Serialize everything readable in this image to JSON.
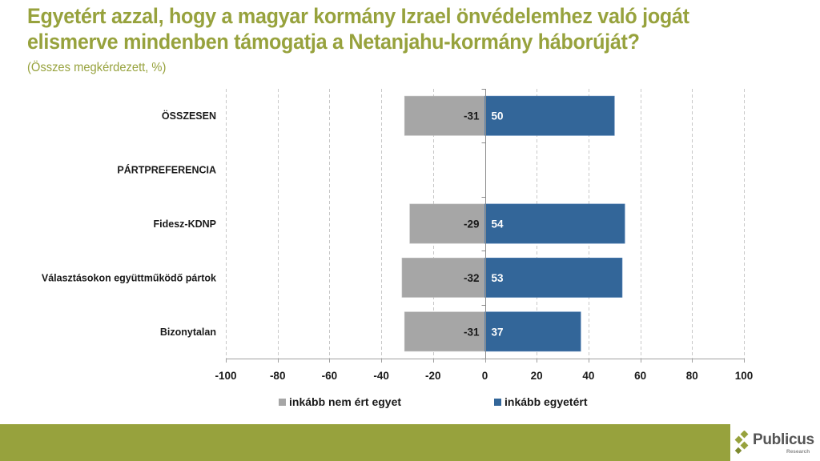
{
  "header": {
    "title": "Egyetért azzal, hogy a magyar kormány Izrael önvédelemhez való jogát elismerve mindenben támogatja a Netanjahu-kormány háborúját?",
    "subtitle": "(Összes megkérdezett, %)"
  },
  "chart_data": {
    "type": "bar",
    "orientation": "horizontal",
    "stacked": "diverging",
    "title": "Egyetért azzal, hogy a magyar kormány Izrael önvédelemhez való jogát elismerve mindenben támogatja a Netanjahu-kormány háborúját?",
    "subtitle": "(Összes megkérdezett, %)",
    "xlabel": "",
    "ylabel": "",
    "xlim": [
      -100,
      100
    ],
    "x_ticks": [
      -100,
      -80,
      -60,
      -40,
      -20,
      0,
      20,
      40,
      60,
      80,
      100
    ],
    "grid": "vertical dashed",
    "categories": [
      "ÖSSZESEN",
      "PÁRTPREFERENCIA",
      "Fidesz-KDNP",
      "Választásokon együttműködő pártok",
      "Bizonytalan"
    ],
    "series": [
      {
        "name": "inkább nem ért egyet",
        "color": "#a6a6a6",
        "values": [
          -31,
          null,
          -29,
          -32,
          -31
        ]
      },
      {
        "name": "inkább egyetért",
        "color": "#336699",
        "values": [
          50,
          null,
          54,
          53,
          37
        ]
      }
    ],
    "legend_position": "bottom"
  },
  "legend": {
    "items": [
      {
        "label": "inkább nem ért egyet",
        "color": "#a6a6a6"
      },
      {
        "label": "inkább egyetért",
        "color": "#336699"
      }
    ]
  },
  "branding": {
    "logo_name": "Publicus",
    "logo_sub": "Research",
    "accent_color": "#97a23d"
  }
}
